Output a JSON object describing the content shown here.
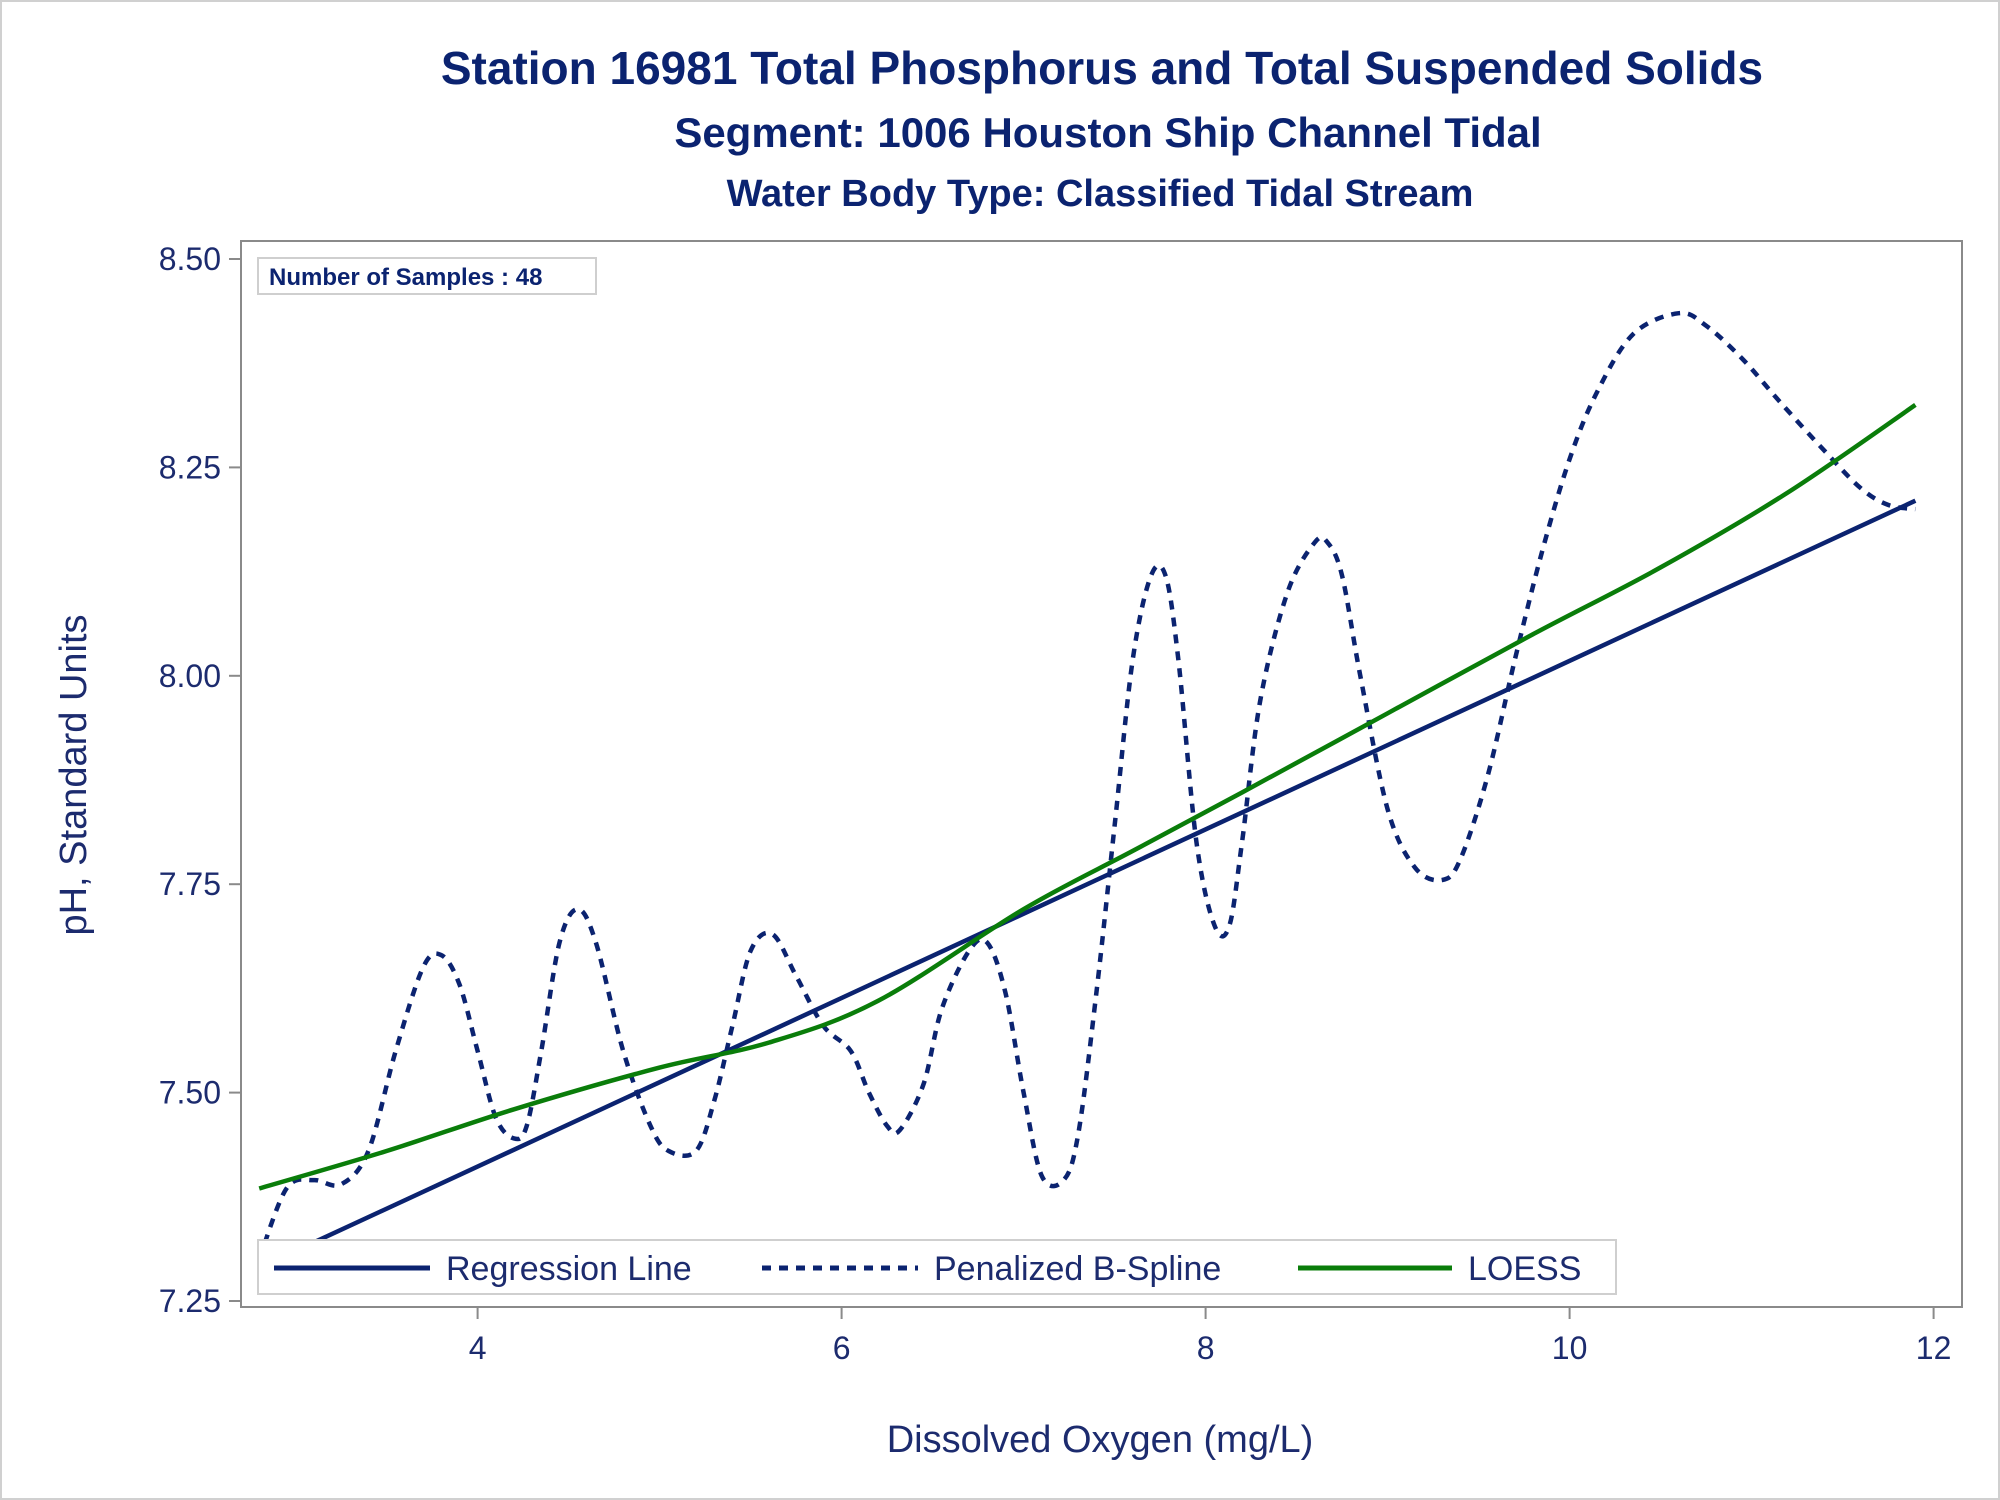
{
  "titles": {
    "line1": "Station 16981  Total Phosphorus and Total Suspended Solids",
    "line2": "Segment: 1006  Houston Ship Channel Tidal",
    "line3": "Water Body Type: Classified Tidal Stream"
  },
  "inset": {
    "text": "Number of Samples : 48"
  },
  "colors": {
    "regression": "#0b2370",
    "spline": "#0b2370",
    "loess": "#0a7d0a",
    "axis": "#8a8a8a",
    "text": "#1c2b6e"
  },
  "chart_data": {
    "type": "line",
    "xlabel": "Dissolved Oxygen (mg/L)",
    "ylabel": "pH, Standard Units",
    "xlim": [
      2.7,
      12.0
    ],
    "ylim": [
      7.25,
      8.5
    ],
    "x_ticks": [
      4,
      6,
      8,
      10,
      12
    ],
    "x_tick_labels": [
      "4",
      "6",
      "8",
      "10",
      "12"
    ],
    "y_ticks": [
      7.25,
      7.5,
      7.75,
      8.0,
      8.25,
      8.5
    ],
    "y_tick_labels": [
      "7.25",
      "7.50",
      "7.75",
      "8.00",
      "8.25",
      "8.50"
    ],
    "grid": false,
    "legend_placement": "bottom-inside",
    "series": [
      {
        "name": "Regression Line",
        "style": "solid",
        "x": [
          2.8,
          11.9
        ],
        "y": [
          7.29,
          8.21
        ]
      },
      {
        "name": "Penalized B-Spline",
        "style": "dashed",
        "x": [
          2.8,
          2.95,
          3.1,
          3.25,
          3.4,
          3.55,
          3.7,
          3.8,
          3.9,
          4.0,
          4.1,
          4.2,
          4.27,
          4.35,
          4.45,
          4.55,
          4.65,
          4.8,
          4.95,
          5.05,
          5.2,
          5.3,
          5.4,
          5.5,
          5.62,
          5.75,
          5.9,
          6.05,
          6.15,
          6.25,
          6.32,
          6.45,
          6.55,
          6.7,
          6.8,
          6.9,
          7.0,
          7.1,
          7.22,
          7.3,
          7.4,
          7.5,
          7.6,
          7.7,
          7.78,
          7.85,
          7.95,
          8.05,
          8.13,
          8.2,
          8.3,
          8.45,
          8.6,
          8.67,
          8.75,
          8.85,
          9.0,
          9.15,
          9.3,
          9.4,
          9.55,
          9.7,
          9.85,
          10.0,
          10.15,
          10.35,
          10.6,
          10.75,
          10.95,
          11.15,
          11.4,
          11.6,
          11.75,
          11.9
        ],
        "y": [
          7.3,
          7.385,
          7.395,
          7.39,
          7.43,
          7.55,
          7.65,
          7.665,
          7.63,
          7.55,
          7.47,
          7.445,
          7.46,
          7.55,
          7.68,
          7.72,
          7.68,
          7.55,
          7.46,
          7.43,
          7.43,
          7.49,
          7.58,
          7.67,
          7.69,
          7.64,
          7.58,
          7.55,
          7.5,
          7.46,
          7.455,
          7.51,
          7.6,
          7.67,
          7.68,
          7.62,
          7.5,
          7.4,
          7.395,
          7.45,
          7.62,
          7.82,
          8.02,
          8.12,
          8.12,
          8.02,
          7.8,
          7.7,
          7.7,
          7.8,
          7.97,
          8.1,
          8.16,
          8.16,
          8.12,
          8.0,
          7.84,
          7.77,
          7.755,
          7.78,
          7.88,
          8.02,
          8.15,
          8.26,
          8.34,
          8.41,
          8.435,
          8.42,
          8.38,
          8.33,
          8.27,
          8.225,
          8.205,
          8.2
        ]
      },
      {
        "name": "LOESS",
        "style": "solid",
        "x": [
          2.8,
          3.5,
          4.2,
          5.0,
          5.6,
          6.2,
          7.0,
          7.6,
          8.2,
          9.0,
          9.8,
          10.5,
          11.2,
          11.9
        ],
        "y": [
          7.385,
          7.43,
          7.48,
          7.53,
          7.56,
          7.61,
          7.72,
          7.79,
          7.86,
          7.955,
          8.05,
          8.13,
          8.22,
          8.325
        ]
      }
    ]
  }
}
